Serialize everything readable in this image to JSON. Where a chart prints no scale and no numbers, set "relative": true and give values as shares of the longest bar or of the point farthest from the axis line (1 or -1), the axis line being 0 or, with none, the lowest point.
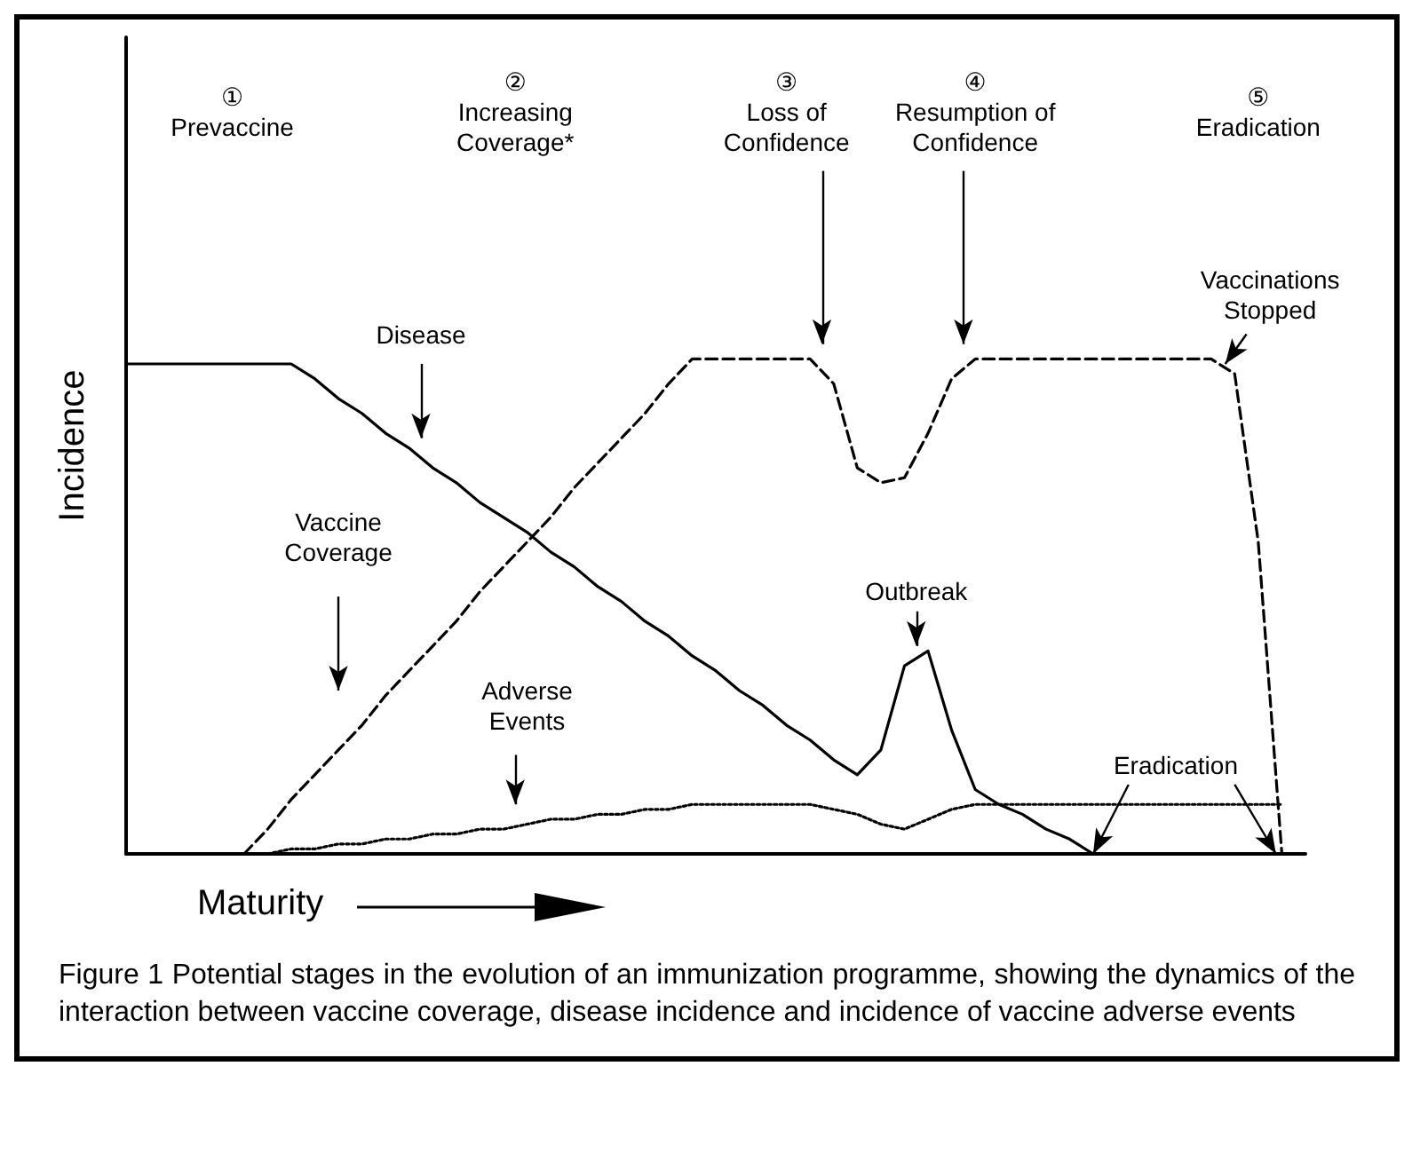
{
  "chart_data": {
    "type": "line",
    "relative": true,
    "xlabel": "Maturity",
    "ylabel": "Incidence",
    "grid": false,
    "marker": "none",
    "categories": [
      null,
      null,
      null,
      null,
      null,
      null,
      null,
      null,
      null,
      null,
      null,
      null,
      null,
      null,
      null,
      null,
      null,
      null,
      null,
      null,
      null,
      null,
      null,
      null,
      null,
      null,
      null,
      null,
      null,
      null,
      null,
      null,
      null,
      null,
      null,
      null,
      null,
      null,
      null,
      null,
      null,
      null,
      null,
      null,
      null,
      null,
      null,
      null,
      null,
      null,
      null
    ],
    "series": [
      {
        "color": "#000000",
        "line_style": "solid",
        "values": [
          0.99,
          0.99,
          0.99,
          0.99,
          0.99,
          0.99,
          0.99,
          0.99,
          0.96,
          0.92,
          0.89,
          0.85,
          0.82,
          0.78,
          0.75,
          0.71,
          0.68,
          0.65,
          0.61,
          0.58,
          0.54,
          0.51,
          0.47,
          0.44,
          0.4,
          0.37,
          0.33,
          0.3,
          0.26,
          0.23,
          0.19,
          0.16,
          0.21,
          0.38,
          0.41,
          0.25,
          0.13,
          0.1,
          0.08,
          0.05,
          0.03,
          0,
          null,
          null,
          null,
          null,
          null,
          null,
          null,
          null,
          null
        ]
      },
      {
        "color": "#000000",
        "line_style": "dashed",
        "values": [
          null,
          null,
          null,
          null,
          null,
          0,
          0.05,
          0.11,
          0.16,
          0.21,
          0.26,
          0.32,
          0.37,
          0.42,
          0.47,
          0.53,
          0.58,
          0.63,
          0.68,
          0.74,
          0.79,
          0.84,
          0.89,
          0.95,
          1,
          1,
          1,
          1,
          1,
          1,
          0.95,
          0.78,
          0.75,
          0.76,
          0.85,
          0.96,
          1,
          1,
          1,
          1,
          1,
          1,
          1,
          1,
          1,
          1,
          1,
          0.97,
          0.63,
          0,
          null
        ]
      },
      {
        "color": "#000000",
        "line_style": "dotted",
        "values": [
          null,
          null,
          null,
          null,
          null,
          null,
          0,
          0.01,
          0.01,
          0.02,
          0.02,
          0.03,
          0.03,
          0.04,
          0.04,
          0.05,
          0.05,
          0.06,
          0.07,
          0.07,
          0.08,
          0.08,
          0.09,
          0.09,
          0.1,
          0.1,
          0.1,
          0.1,
          0.1,
          0.1,
          0.09,
          0.08,
          0.06,
          0.05,
          0.07,
          0.09,
          0.1,
          0.1,
          0.1,
          0.1,
          0.1,
          0.1,
          0.1,
          0.1,
          0.1,
          0.1,
          0.1,
          0.1,
          0.1,
          0.1,
          null
        ]
      }
    ],
    "annotations": [
      "①\nPrevaccine",
      "②\nIncreasing\nCoverage*",
      "③\nLoss of\nConfidence",
      "④\nResumption of\nConfidence",
      "⑤\nEradication",
      "Disease",
      "Vaccine\nCoverage",
      "Adverse\nEvents",
      "Outbreak",
      "Eradication",
      "Vaccinations\nStopped",
      "Figure 1  Potential stages in the evolution of an immunization programme, showing the dynamics of the interaction between vaccine coverage, disease incidence and incidence of vaccine adverse events"
    ]
  }
}
